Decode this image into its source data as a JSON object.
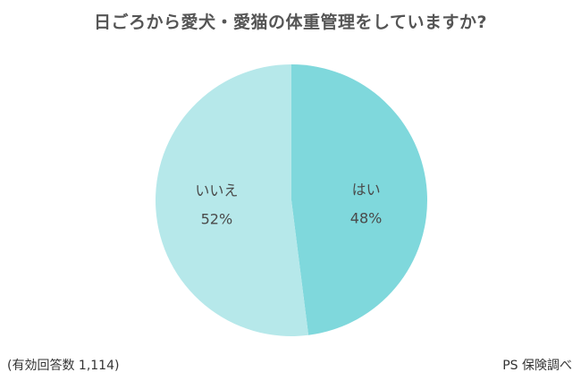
{
  "chart_data": {
    "type": "pie",
    "title": "日ごろから愛犬・愛猫の体重管理をしていますか?",
    "slices": [
      {
        "label": "はい",
        "value": 48,
        "value_label": "48%",
        "color": "#7fd8dc"
      },
      {
        "label": "いいえ",
        "value": 52,
        "value_label": "52%",
        "color": "#b6e8ea"
      }
    ],
    "start": "12 o'clock",
    "direction": "clockwise",
    "legend": "none"
  },
  "footnote": "(有効回答数 1,114)",
  "source": "PS 保険調べ"
}
